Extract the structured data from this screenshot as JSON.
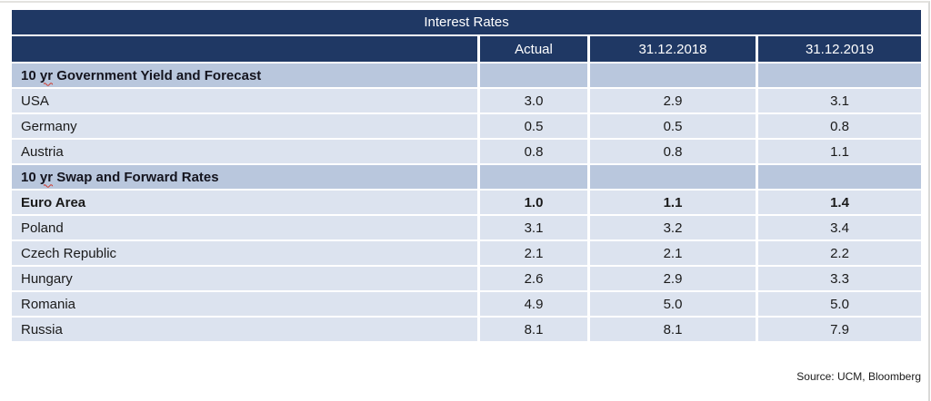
{
  "colors": {
    "header_navy": "#1f3864",
    "section_row_bg": "#b9c7dd",
    "data_row_bg": "#dce3ef",
    "header_text": "#ffffff",
    "body_text": "#1a1a1a",
    "spellcheck_red": "#d03a2e"
  },
  "table": {
    "title": "Interest Rates",
    "columns": [
      "Actual",
      "31.12.2018",
      "31.12.2019"
    ],
    "rows": [
      {
        "type": "section",
        "prefix": "10 ",
        "misspelled": "yr",
        "suffix": " Government Yield and Forecast",
        "values": [
          "",
          "",
          ""
        ]
      },
      {
        "type": "data",
        "label": "USA",
        "values": [
          "3.0",
          "2.9",
          "3.1"
        ]
      },
      {
        "type": "data",
        "label": "Germany",
        "values": [
          "0.5",
          "0.5",
          "0.8"
        ]
      },
      {
        "type": "data",
        "label": "Austria",
        "values": [
          "0.8",
          "0.8",
          "1.1"
        ]
      },
      {
        "type": "section",
        "prefix": "10 ",
        "misspelled": "yr",
        "suffix": " Swap and Forward Rates",
        "values": [
          "",
          "",
          ""
        ]
      },
      {
        "type": "data-bold",
        "label": "Euro Area",
        "values": [
          "1.0",
          "1.1",
          "1.4"
        ]
      },
      {
        "type": "data",
        "label": "Poland",
        "values": [
          "3.1",
          "3.2",
          "3.4"
        ]
      },
      {
        "type": "data",
        "label": "Czech Republic",
        "values": [
          "2.1",
          "2.1",
          "2.2"
        ]
      },
      {
        "type": "data",
        "label": "Hungary",
        "values": [
          "2.6",
          "2.9",
          "3.3"
        ]
      },
      {
        "type": "data",
        "label": "Romania",
        "values": [
          "4.9",
          "5.0",
          "5.0"
        ]
      },
      {
        "type": "data",
        "label": "Russia",
        "values": [
          "8.1",
          "8.1",
          "7.9"
        ]
      }
    ]
  },
  "source": "Source: UCM, Bloomberg"
}
